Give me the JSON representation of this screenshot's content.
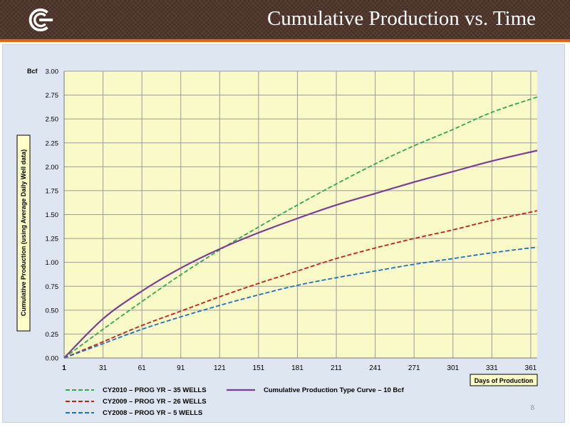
{
  "header": {
    "title": "Cumulative Production vs. Time"
  },
  "page_number": "8",
  "chart_data": {
    "type": "line",
    "ylabel": "Cumulative Production (using Average Daily Well data)",
    "yunit": "Bcf",
    "xlabel": "Days of Production",
    "xlim": [
      1,
      366
    ],
    "ylim": [
      0,
      3.0
    ],
    "xticks": [
      1,
      31,
      61,
      91,
      121,
      151,
      181,
      211,
      241,
      271,
      301,
      331,
      361
    ],
    "yticks": [
      0.0,
      0.25,
      0.5,
      0.75,
      1.0,
      1.25,
      1.5,
      1.75,
      2.0,
      2.25,
      2.5,
      2.75,
      3.0
    ],
    "grid": true,
    "legend_position": "bottom",
    "background_color": "#fafac8",
    "series": [
      {
        "name": "CY2010 – PROG YR – 35 WELLS",
        "color": "#2fa84f",
        "dash": "dashed",
        "x": [
          1,
          31,
          61,
          91,
          121,
          151,
          181,
          211,
          241,
          271,
          301,
          331,
          366
        ],
        "y": [
          0.0,
          0.3,
          0.59,
          0.87,
          1.13,
          1.37,
          1.6,
          1.82,
          2.03,
          2.22,
          2.39,
          2.57,
          2.73
        ]
      },
      {
        "name": "CY2009 – PROG YR – 26 WELLS",
        "color": "#c0201b",
        "dash": "dashed",
        "x": [
          1,
          31,
          61,
          91,
          121,
          151,
          181,
          211,
          241,
          271,
          301,
          331,
          366
        ],
        "y": [
          0.0,
          0.17,
          0.34,
          0.49,
          0.64,
          0.78,
          0.91,
          1.04,
          1.15,
          1.25,
          1.34,
          1.44,
          1.54
        ]
      },
      {
        "name": "CY2008 – PROG YR – 5 WELLS",
        "color": "#1f6fc0",
        "dash": "dashed",
        "x": [
          1,
          31,
          61,
          91,
          121,
          151,
          181,
          211,
          241,
          271,
          301,
          331,
          366
        ],
        "y": [
          0.0,
          0.15,
          0.3,
          0.43,
          0.55,
          0.66,
          0.76,
          0.84,
          0.91,
          0.98,
          1.04,
          1.1,
          1.16
        ]
      },
      {
        "name": "Cumulative Production Type Curve – 10 Bcf",
        "color": "#7a3e98",
        "dash": "solid",
        "x": [
          1,
          31,
          61,
          91,
          121,
          151,
          181,
          211,
          241,
          271,
          301,
          331,
          366
        ],
        "y": [
          0.0,
          0.41,
          0.7,
          0.94,
          1.14,
          1.31,
          1.46,
          1.6,
          1.72,
          1.84,
          1.95,
          2.06,
          2.17
        ]
      }
    ]
  }
}
